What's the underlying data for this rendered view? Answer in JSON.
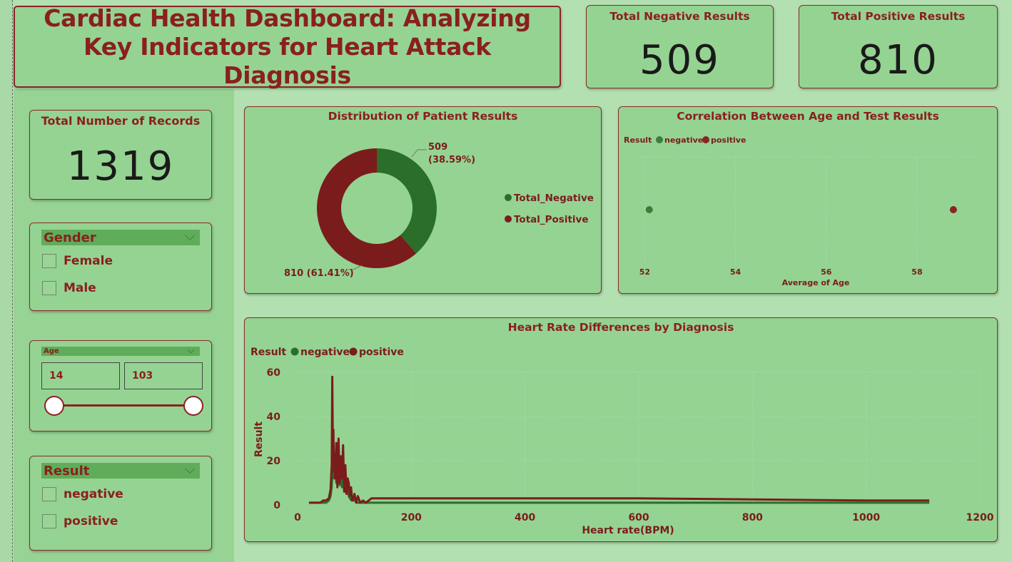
{
  "title": "Cardiac Health Dashboard: Analyzing Key Indicators for Heart Attack Diagnosis",
  "kpis": {
    "negative": {
      "label": "Total Negative Results",
      "value": "509"
    },
    "positive": {
      "label": "Total Positive Results",
      "value": "810"
    },
    "records": {
      "label": "Total Number of Records",
      "value": "1319"
    }
  },
  "slicers": {
    "gender": {
      "header": "Gender",
      "options": [
        "Female",
        "Male"
      ]
    },
    "age": {
      "header": "Age",
      "min": "14",
      "max": "103"
    },
    "result": {
      "header": "Result",
      "options": [
        "negative",
        "positive"
      ]
    }
  },
  "colors": {
    "negative": "#2a6e2a",
    "positive": "#7b1c1c",
    "accent": "#8a1f1f"
  },
  "chart_data": [
    {
      "type": "pie",
      "title": "Distribution of Patient Results",
      "categories": [
        "Total_Negative",
        "Total_Positive"
      ],
      "values": [
        509,
        810
      ],
      "labels": [
        "509",
        "(38.59%)",
        "810 (61.41%)"
      ],
      "legend": "right"
    },
    {
      "type": "scatter",
      "title": "Correlation Between Age and Test Results",
      "legend_title": "Result",
      "legend": "top-left",
      "xlabel": "Average of Age",
      "xticks": [
        "52",
        "54",
        "56",
        "58"
      ],
      "xlim": [
        51.9,
        59.4
      ],
      "series": [
        {
          "name": "negative",
          "x": [
            52.1
          ],
          "y": [
            0
          ]
        },
        {
          "name": "positive",
          "x": [
            58.8
          ],
          "y": [
            0
          ]
        }
      ]
    },
    {
      "type": "line",
      "title": "Heart Rate Differences by Diagnosis",
      "legend_title": "Result",
      "legend": "top-left",
      "xlabel": "Heart rate(BPM)",
      "ylabel": "Result",
      "xticks": [
        "0",
        "200",
        "400",
        "600",
        "800",
        "1000",
        "1200"
      ],
      "yticks": [
        "0",
        "20",
        "40",
        "60"
      ],
      "xlim": [
        0,
        1200
      ],
      "ylim": [
        0,
        60
      ],
      "grid": true,
      "series": [
        {
          "name": "negative",
          "x": [
            20,
            40,
            50,
            55,
            58,
            60,
            62,
            64,
            66,
            68,
            70,
            72,
            74,
            76,
            78,
            80,
            82,
            84,
            86,
            88,
            90,
            92,
            95,
            100,
            105,
            110,
            120,
            200,
            400,
            600,
            800,
            1000,
            1111
          ],
          "y": [
            1,
            1,
            1,
            2,
            4,
            8,
            20,
            12,
            16,
            10,
            18,
            14,
            9,
            13,
            8,
            12,
            6,
            10,
            5,
            8,
            4,
            3,
            2,
            2,
            1,
            1,
            1,
            1,
            1,
            1,
            1,
            1,
            1
          ]
        },
        {
          "name": "positive",
          "x": [
            20,
            40,
            45,
            50,
            55,
            58,
            60,
            61,
            62,
            63,
            64,
            65,
            66,
            68,
            70,
            72,
            74,
            76,
            78,
            80,
            82,
            84,
            86,
            88,
            90,
            92,
            94,
            96,
            98,
            100,
            103,
            106,
            110,
            115,
            120,
            130,
            200,
            400,
            600,
            800,
            1000,
            1111
          ],
          "y": [
            1,
            1,
            2,
            2,
            3,
            7,
            18,
            58,
            25,
            34,
            15,
            22,
            12,
            28,
            8,
            30,
            10,
            22,
            12,
            27,
            6,
            18,
            5,
            12,
            10,
            4,
            8,
            2,
            3,
            5,
            1,
            4,
            1,
            2,
            1,
            3,
            3,
            3,
            3,
            2.5,
            2,
            2
          ]
        }
      ]
    }
  ]
}
